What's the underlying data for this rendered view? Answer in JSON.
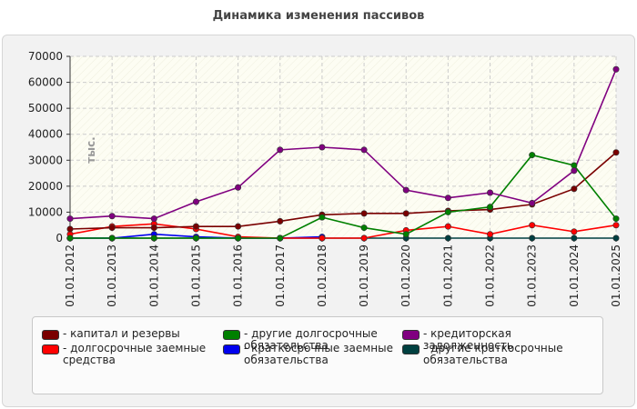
{
  "title": "Динамика изменения пассивов",
  "chart_data": {
    "type": "line",
    "title": "Динамика изменения пассивов",
    "xlabel": "",
    "ylabel": "тыс.",
    "ylim": [
      0,
      70000
    ],
    "yticks": [
      "0",
      "10000",
      "20000",
      "30000",
      "40000",
      "50000",
      "60000",
      "70000"
    ],
    "grid": true,
    "legend_position": "bottom",
    "categories": [
      "01.01.2012",
      "01.01.2013",
      "01.01.2014",
      "01.01.2015",
      "01.01.2016",
      "01.01.2017",
      "01.01.2018",
      "01.01.2019",
      "01.01.2020",
      "01.01.2021",
      "01.01.2022",
      "01.01.2023",
      "01.01.2024",
      "01.01.2025"
    ],
    "series": [
      {
        "name": "- капитал и резервы",
        "color": "#7a0000",
        "values": [
          3500,
          4000,
          4000,
          4500,
          4500,
          6500,
          9000,
          9500,
          9500,
          10500,
          11000,
          13000,
          19000,
          33000
        ]
      },
      {
        "name": "- долгосрочные заемные средства",
        "color": "#ff0000",
        "values": [
          1500,
          4500,
          5500,
          3500,
          500,
          0,
          0,
          0,
          3000,
          4500,
          1500,
          5000,
          2500,
          5000
        ]
      },
      {
        "name": "- другие долгосрочные обязательства",
        "color": "#008000",
        "values": [
          0,
          0,
          0,
          0,
          0,
          0,
          8000,
          4000,
          1500,
          10000,
          12000,
          32000,
          28000,
          7500
        ]
      },
      {
        "name": "- краткосрочные заемные обязательства",
        "color": "#0000ee",
        "values": [
          0,
          0,
          1500,
          500,
          0,
          0,
          500,
          null,
          null,
          null,
          null,
          null,
          null,
          null
        ]
      },
      {
        "name": "- кредиторская задолженность",
        "color": "#800080",
        "values": [
          7500,
          8500,
          7500,
          14000,
          19500,
          34000,
          35000,
          34000,
          18500,
          15500,
          17500,
          13500,
          26000,
          65000
        ]
      },
      {
        "name": "- другие краткосрочные обязательства",
        "color": "#004040",
        "values": [
          0,
          0,
          0,
          0,
          0,
          0,
          0,
          0,
          0,
          0,
          0,
          0,
          0,
          0
        ]
      }
    ]
  }
}
